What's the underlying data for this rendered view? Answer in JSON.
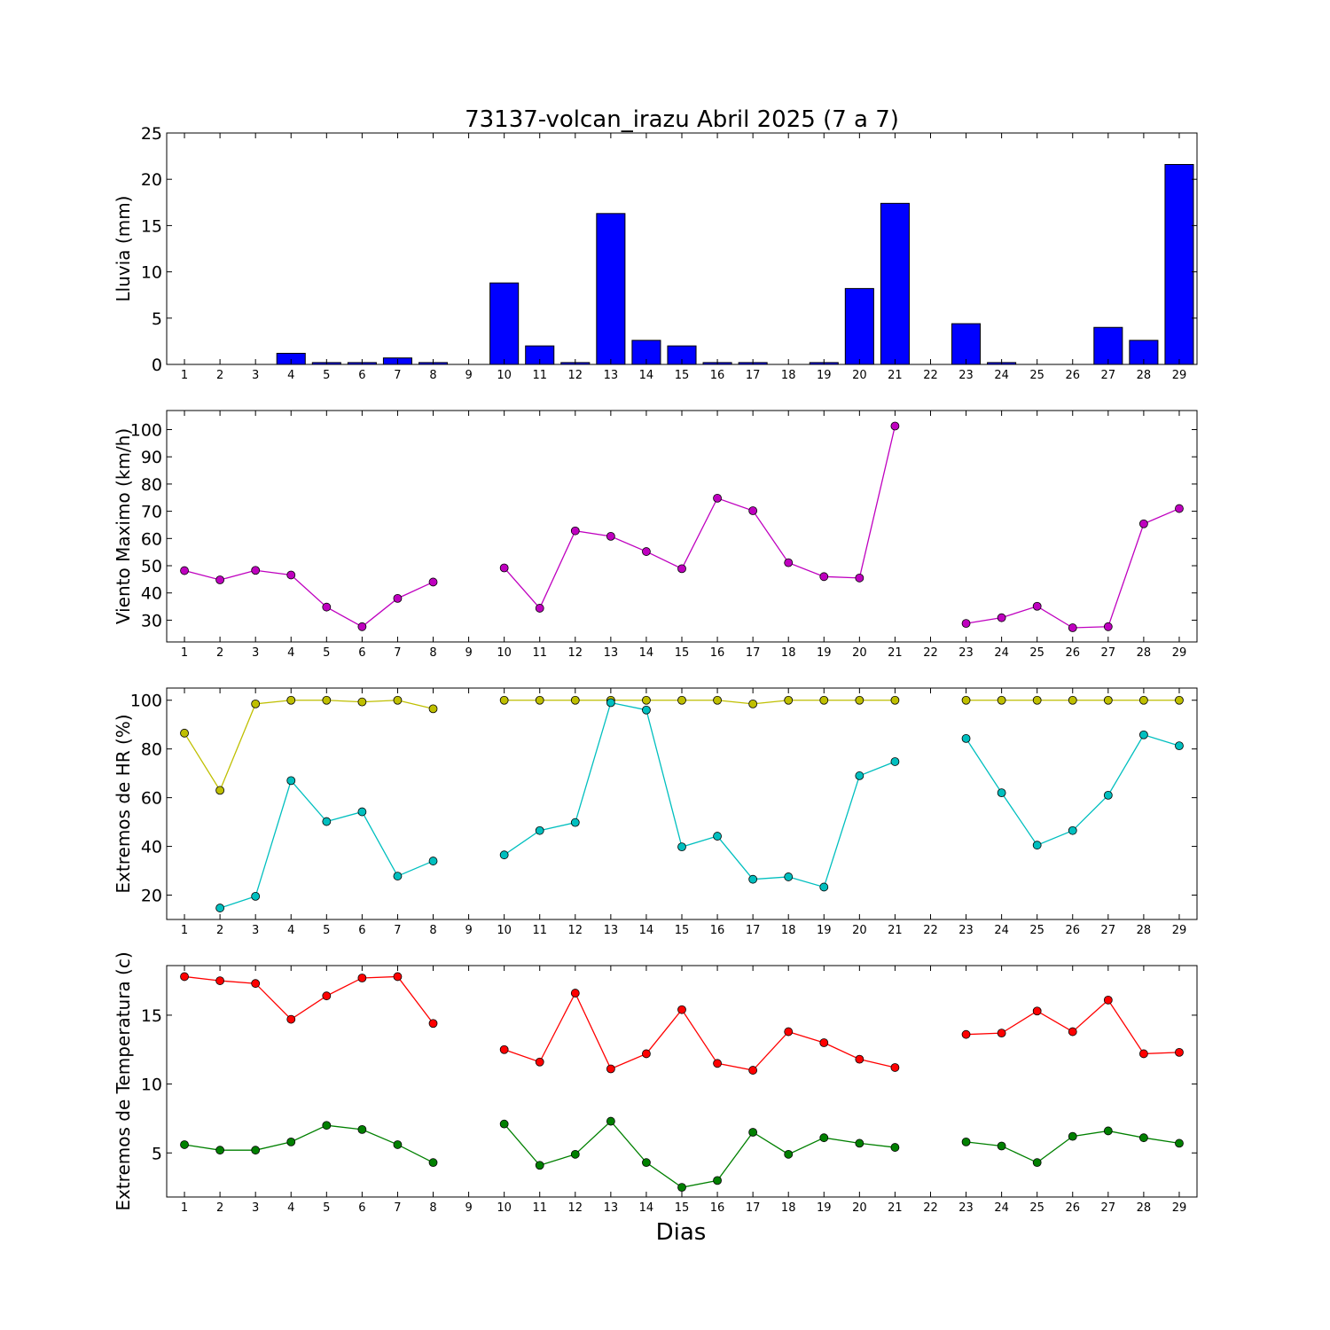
{
  "figure": {
    "title": "73137-volcan_irazu Abril 2025  (7 a 7)",
    "xlabel": "Dias"
  },
  "chart_data": [
    {
      "type": "bar",
      "ylabel": "Lluvia (mm)",
      "ylim": [
        0,
        25
      ],
      "yticks": [
        0,
        5,
        10,
        15,
        20,
        25
      ],
      "x": [
        1,
        2,
        3,
        4,
        5,
        6,
        7,
        8,
        9,
        10,
        11,
        12,
        13,
        14,
        15,
        16,
        17,
        18,
        19,
        20,
        21,
        22,
        23,
        24,
        25,
        26,
        27,
        28,
        29
      ],
      "series": [
        {
          "color": "#0000ff",
          "values": [
            0,
            0,
            0,
            1.2,
            0.2,
            0.2,
            0.7,
            0.2,
            null,
            8.8,
            2.0,
            0.2,
            16.3,
            2.6,
            2.0,
            0.2,
            0.2,
            0,
            0.2,
            8.2,
            17.4,
            null,
            4.4,
            0.2,
            0,
            0,
            4.0,
            2.6,
            21.6
          ]
        }
      ]
    },
    {
      "type": "line",
      "ylabel": "Viento Maximo (km/h)",
      "ylim": [
        22,
        107
      ],
      "yticks": [
        30,
        40,
        50,
        60,
        70,
        80,
        90,
        100
      ],
      "x": [
        1,
        2,
        3,
        4,
        5,
        6,
        7,
        8,
        9,
        10,
        11,
        12,
        13,
        14,
        15,
        16,
        17,
        18,
        19,
        20,
        21,
        22,
        23,
        24,
        25,
        26,
        27,
        28,
        29
      ],
      "series": [
        {
          "color": "#bf00bf",
          "values": [
            48.2,
            44.8,
            48.3,
            46.6,
            34.8,
            27.6,
            38.0,
            44.0,
            null,
            49.2,
            34.4,
            62.8,
            60.8,
            55.2,
            48.9,
            74.8,
            70.2,
            51.1,
            46.0,
            45.5,
            101.3,
            null,
            28.8,
            30.9,
            35.1,
            27.2,
            27.6,
            65.4,
            71.0
          ]
        }
      ]
    },
    {
      "type": "line",
      "ylabel": "Extremos de HR (%)",
      "ylim": [
        10,
        105
      ],
      "yticks": [
        20,
        40,
        60,
        80,
        100
      ],
      "x": [
        1,
        2,
        3,
        4,
        5,
        6,
        7,
        8,
        9,
        10,
        11,
        12,
        13,
        14,
        15,
        16,
        17,
        18,
        19,
        20,
        21,
        22,
        23,
        24,
        25,
        26,
        27,
        28,
        29
      ],
      "series": [
        {
          "color": "#bfbf00",
          "values": [
            86.5,
            63.0,
            98.5,
            100,
            100,
            99.3,
            100,
            96.5,
            null,
            100,
            100,
            100,
            100,
            100,
            100,
            100,
            98.5,
            100,
            100,
            100,
            100,
            null,
            100,
            100,
            100,
            100,
            100,
            100,
            100
          ]
        },
        {
          "color": "#00bfbf",
          "values": [
            null,
            14.7,
            19.5,
            67.0,
            50.2,
            54.2,
            27.8,
            34.0,
            null,
            36.5,
            46.5,
            49.8,
            99.0,
            96.0,
            39.8,
            44.2,
            26.5,
            27.5,
            23.3,
            69.0,
            74.8,
            null,
            84.3,
            62.0,
            40.5,
            46.5,
            61.0,
            85.8,
            81.3
          ]
        }
      ]
    },
    {
      "type": "line",
      "ylabel": "Extremos de Temperatura (c)",
      "ylim": [
        1.8,
        18.6
      ],
      "yticks": [
        5,
        10,
        15
      ],
      "x": [
        1,
        2,
        3,
        4,
        5,
        6,
        7,
        8,
        9,
        10,
        11,
        12,
        13,
        14,
        15,
        16,
        17,
        18,
        19,
        20,
        21,
        22,
        23,
        24,
        25,
        26,
        27,
        28,
        29
      ],
      "series": [
        {
          "color": "#ff0000",
          "values": [
            17.8,
            17.5,
            17.3,
            14.7,
            16.4,
            17.7,
            17.8,
            14.4,
            null,
            12.5,
            11.6,
            16.6,
            11.1,
            12.2,
            15.4,
            11.5,
            11.0,
            13.8,
            13.0,
            11.8,
            11.2,
            null,
            13.6,
            13.7,
            15.3,
            13.8,
            16.1,
            12.2,
            12.3
          ]
        },
        {
          "color": "#008000",
          "values": [
            5.6,
            5.2,
            5.2,
            5.8,
            7.0,
            6.7,
            5.6,
            4.3,
            null,
            7.1,
            4.1,
            4.9,
            7.3,
            4.3,
            2.5,
            3.0,
            6.5,
            4.9,
            6.1,
            5.7,
            5.4,
            null,
            5.8,
            5.5,
            4.3,
            6.2,
            6.6,
            6.1,
            5.7
          ]
        }
      ]
    }
  ]
}
